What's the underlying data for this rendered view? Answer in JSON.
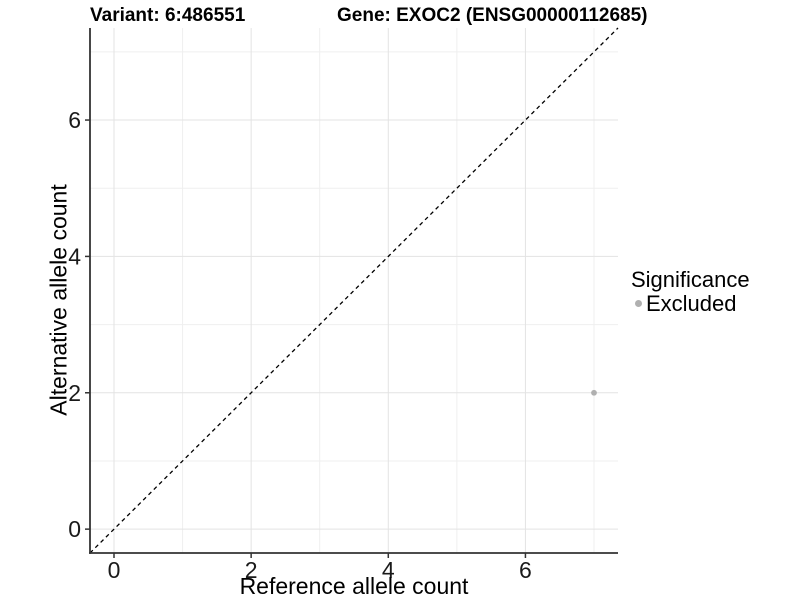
{
  "chart_data": {
    "type": "scatter",
    "title_left": "Variant: 6:486551",
    "title_right": "Gene: EXOC2 (ENSG00000112685)",
    "xlabel": "Reference allele count",
    "ylabel": "Alternative allele count",
    "xlim": [
      -0.35,
      7.35
    ],
    "ylim": [
      -0.35,
      7.35
    ],
    "x_ticks": [
      0,
      2,
      4,
      6
    ],
    "y_ticks": [
      0,
      2,
      4,
      6
    ],
    "x_minor_ticks": [
      1,
      3,
      5,
      7
    ],
    "y_minor_ticks": [
      1,
      3,
      5,
      7
    ],
    "grid": true,
    "reference_line": {
      "kind": "identity y=x",
      "style": "dashed",
      "color": "#000000"
    },
    "series": [
      {
        "name": "Excluded",
        "color": "#b0b0b0",
        "points": [
          [
            7,
            2
          ]
        ]
      }
    ],
    "legend": {
      "title": "Significance",
      "position": "right",
      "items": [
        {
          "label": "Excluded",
          "color": "#b0b0b0"
        }
      ]
    },
    "colors": {
      "background": "#ffffff",
      "grid_major": "#e3e3e3",
      "grid_minor": "#efefef",
      "axis_line": "#333333",
      "tick_label": "#1a1a1a"
    }
  }
}
